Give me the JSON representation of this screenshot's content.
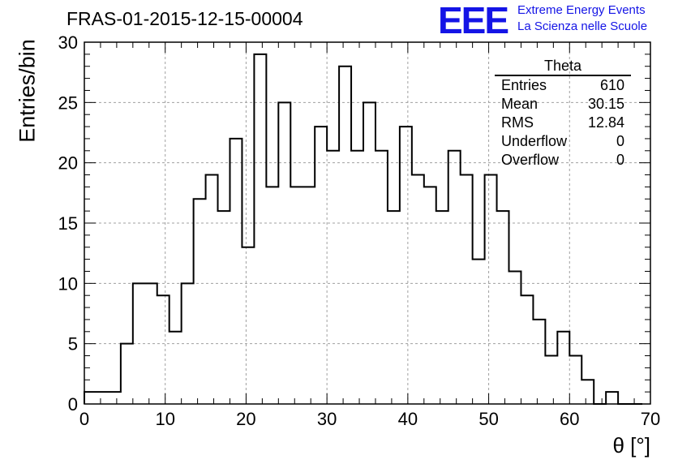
{
  "chart_data": {
    "type": "bar",
    "title": "FRAS-01-2015-12-15-00004",
    "xlabel": "θ [°]",
    "ylabel": "Entries/bin",
    "xlim": [
      0,
      70
    ],
    "ylim": [
      0,
      30
    ],
    "grid": true,
    "x_ticks": [
      "0",
      "10",
      "20",
      "30",
      "40",
      "50",
      "60",
      "70"
    ],
    "y_ticks": [
      "0",
      "5",
      "10",
      "15",
      "20",
      "25",
      "30"
    ],
    "bin_width": 1.5,
    "bin_edges_start": 0,
    "values": [
      1,
      1,
      1,
      5,
      10,
      10,
      9,
      6,
      10,
      17,
      19,
      16,
      22,
      13,
      29,
      18,
      25,
      18,
      18,
      23,
      21,
      28,
      21,
      25,
      21,
      16,
      23,
      19,
      18,
      16,
      21,
      19,
      12,
      19,
      16,
      11,
      9,
      7,
      4,
      6,
      4,
      2,
      0,
      1,
      0,
      0
    ]
  },
  "stats": {
    "title": "Theta",
    "rows": [
      {
        "label": "Entries",
        "value": "610"
      },
      {
        "label": "Mean",
        "value": "30.15"
      },
      {
        "label": "RMS",
        "value": "12.84"
      },
      {
        "label": "Underflow",
        "value": "0"
      },
      {
        "label": "Overflow",
        "value": "0"
      }
    ]
  },
  "logo": {
    "mark": "EEE",
    "line1": "Extreme Energy Events",
    "line2": "La Scienza nelle Scuole",
    "color": "#1414e6"
  }
}
